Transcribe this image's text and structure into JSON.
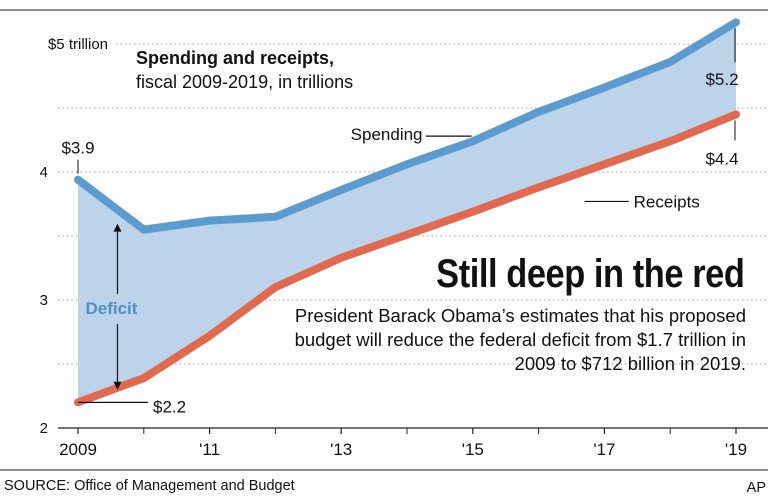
{
  "header": {
    "subtitle_bold": "Spending and receipts,",
    "subtitle": "fiscal 2009-2019, in trillions"
  },
  "headline": "Still deep in the red",
  "description": "President Barack Obama’s estimates that his proposed budget will reduce the federal deficit from $1.7 trillion in 2009 to $712 billion in 2019.",
  "footer": {
    "source": "SOURCE: Office of Management and Budget",
    "credit": "AP"
  },
  "colors": {
    "spending": "#5b9bd0",
    "receipts": "#e0694f",
    "deficit_fill": "#bcd3ea",
    "deficit_label": "#4f8fc8",
    "grid": "#9a9a9a"
  },
  "chart_data": {
    "type": "area",
    "title": "Spending and receipts, fiscal 2009-2019, in trillions",
    "x": [
      2009,
      2010,
      2011,
      2012,
      2013,
      2014,
      2015,
      2016,
      2017,
      2018,
      2019
    ],
    "x_tick_labels": [
      "2009",
      "'11",
      "'13",
      "'15",
      "'17",
      "'19"
    ],
    "x_tick_values": [
      2009,
      2011,
      2013,
      2015,
      2017,
      2019
    ],
    "y_tick_labels": [
      "$5 trillion",
      "4",
      "3",
      "2"
    ],
    "y_tick_values": [
      5,
      4,
      3,
      2
    ],
    "ylim": [
      2,
      5
    ],
    "grid": true,
    "series": [
      {
        "name": "Spending",
        "values": [
          3.94,
          3.55,
          3.62,
          3.65,
          3.86,
          4.06,
          4.24,
          4.47,
          4.66,
          4.86,
          5.17
        ],
        "start_label": "$3.9",
        "end_label": "$5.2"
      },
      {
        "name": "Receipts",
        "values": [
          2.2,
          2.39,
          2.72,
          3.1,
          3.33,
          3.51,
          3.69,
          3.88,
          4.06,
          4.24,
          4.45
        ],
        "start_label": "$2.2",
        "end_label": "$4.4"
      }
    ],
    "annotations": [
      "Deficit"
    ]
  }
}
